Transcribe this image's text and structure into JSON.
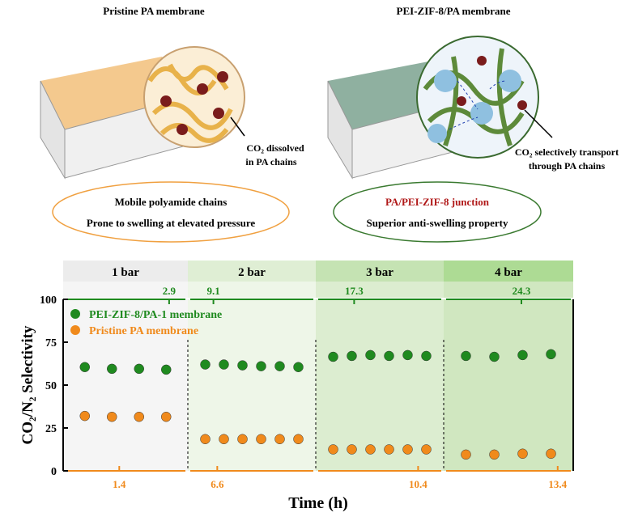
{
  "illustration": {
    "left_title": "Pristine PA membrane",
    "right_title": "PEI-ZIF-8/PA membrane",
    "left_note": [
      "CO₂ dissolved",
      "in PA chains"
    ],
    "right_note": [
      "CO₂ selectively transport",
      "through PA chains"
    ],
    "left_box": [
      "Mobile polyamide chains",
      "Prone to swelling at elevated pressure"
    ],
    "right_box": [
      "PA/PEI-ZIF-8 junction",
      "Superior anti-swelling property"
    ]
  },
  "chart_data": {
    "type": "scatter",
    "ylabel": "CO₂/N₂ Selectivity",
    "xlabel": "Time (h)",
    "ylim": [
      0,
      100
    ],
    "yticks": [
      0,
      25,
      50,
      75,
      100
    ],
    "panels": [
      "1 bar",
      "2 bar",
      "3 bar",
      "4 bar"
    ],
    "top_ticks": [
      2.9,
      9.1,
      17.3,
      24.3
    ],
    "xticks": [
      1.4,
      6.6,
      10.4,
      13.4
    ],
    "legend": "upper left",
    "series": [
      {
        "name": "PEI-ZIF-8/PA-1 membrane",
        "color": "#1f8a1f",
        "values": [
          [
            60.5,
            59.5,
            59.5,
            59
          ],
          [
            62,
            62,
            61.5,
            61,
            61,
            60.5
          ],
          [
            66.5,
            67,
            67.5,
            67,
            67.5,
            67
          ],
          [
            67,
            66.5,
            67.5,
            68
          ]
        ]
      },
      {
        "name": "Pristine PA membrane",
        "color": "#f08a1c",
        "values": [
          [
            32,
            31.5,
            31.5,
            31.5
          ],
          [
            18.5,
            18.5,
            18.5,
            18.5,
            18.5,
            18.5
          ],
          [
            12.5,
            12.5,
            12.5,
            12.5,
            12.5,
            12.5
          ],
          [
            9.5,
            9.5,
            10,
            10
          ]
        ]
      }
    ]
  }
}
